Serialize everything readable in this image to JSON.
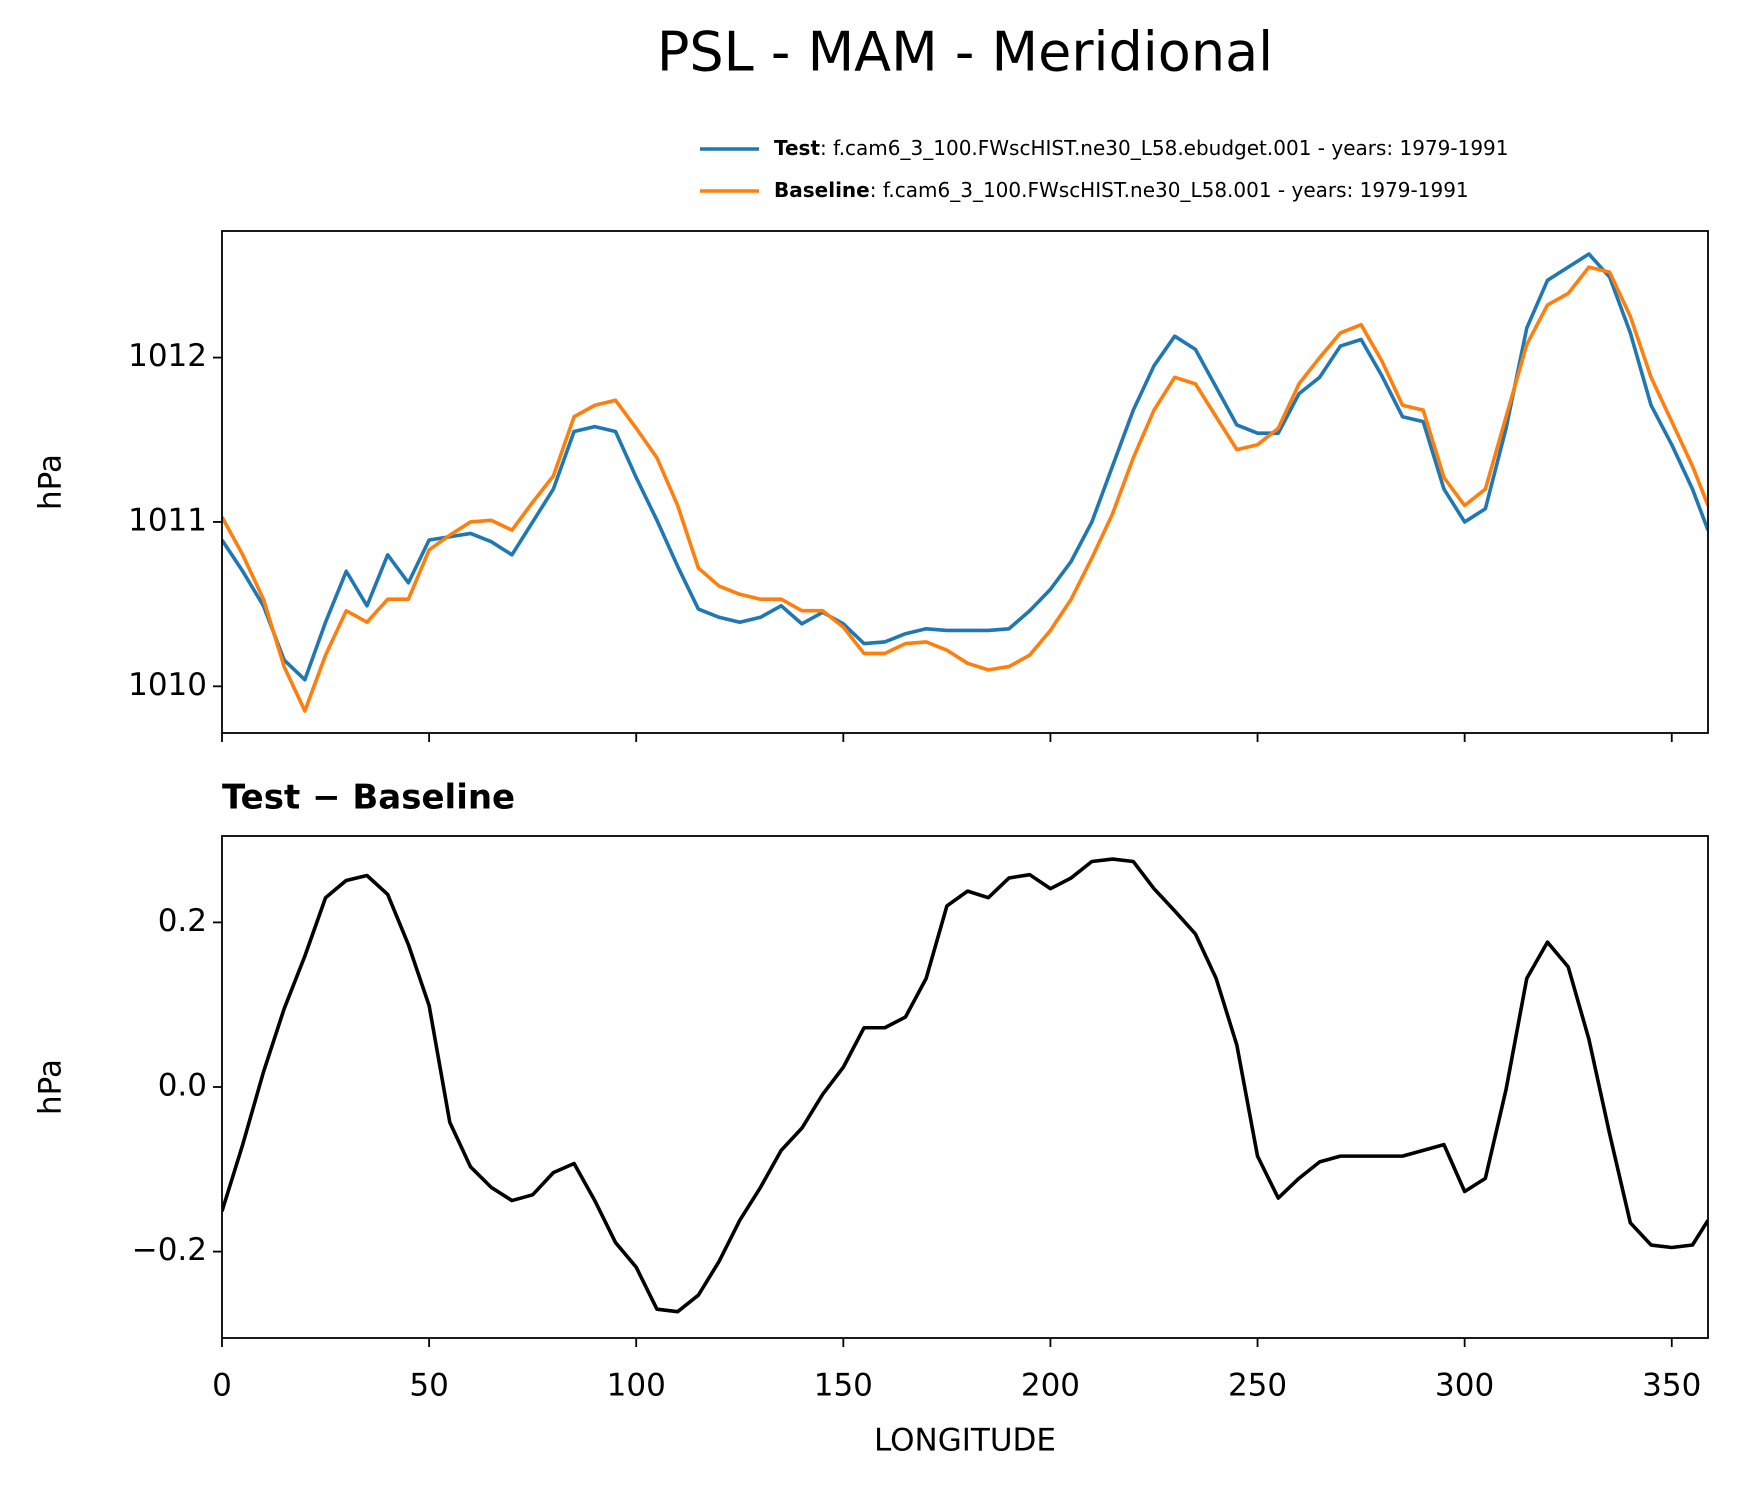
{
  "title": "PSL - MAM - Meridional",
  "chart_data": [
    {
      "type": "line",
      "ylabel": "hPa",
      "legend": "upper right",
      "x": [
        0,
        5,
        10,
        15,
        20,
        25,
        30,
        35,
        40,
        45,
        50,
        55,
        60,
        65,
        70,
        75,
        80,
        85,
        90,
        95,
        100,
        105,
        110,
        115,
        120,
        125,
        130,
        135,
        140,
        145,
        150,
        155,
        160,
        165,
        170,
        175,
        180,
        185,
        190,
        195,
        200,
        205,
        210,
        215,
        220,
        225,
        230,
        235,
        240,
        245,
        250,
        255,
        260,
        265,
        270,
        275,
        280,
        285,
        290,
        295,
        300,
        305,
        310,
        315,
        320,
        325,
        330,
        335,
        340,
        345,
        350,
        355,
        358.75
      ],
      "xlim": [
        0,
        358.75
      ],
      "xticks": [
        0,
        50,
        100,
        150,
        200,
        250,
        300,
        350
      ],
      "ylim": [
        1009.716,
        1012.77
      ],
      "yticks": [
        1010,
        1011,
        1012
      ],
      "series": [
        {
          "name": "Test",
          "description": ": f.cam6_3_100.FWscHIST.ne30_L58.ebudget.001 - years: 1979-1991",
          "color": "#1f77b4",
          "values": [
            1010.89,
            1010.7,
            1010.49,
            1010.16,
            1010.04,
            1010.39,
            1010.7,
            1010.49,
            1010.8,
            1010.63,
            1010.89,
            1010.91,
            1010.93,
            1010.88,
            1010.8,
            1011.0,
            1011.2,
            1011.55,
            1011.58,
            1011.55,
            1011.27,
            1011.01,
            1010.73,
            1010.47,
            1010.42,
            1010.39,
            1010.42,
            1010.49,
            1010.38,
            1010.45,
            1010.38,
            1010.26,
            1010.27,
            1010.32,
            1010.35,
            1010.34,
            1010.34,
            1010.34,
            1010.35,
            1010.46,
            1010.59,
            1010.76,
            1011.0,
            1011.34,
            1011.68,
            1011.95,
            1012.13,
            1012.05,
            1011.82,
            1011.59,
            1011.54,
            1011.54,
            1011.78,
            1011.88,
            1012.07,
            1012.11,
            1011.89,
            1011.64,
            1011.61,
            1011.2,
            1011.0,
            1011.08,
            1011.57,
            1012.18,
            1012.47,
            1012.55,
            1012.63,
            1012.49,
            1012.15,
            1011.71,
            1011.47,
            1011.2,
            1010.95
          ]
        },
        {
          "name": "Baseline",
          "description": ": f.cam6_3_100.FWscHIST.ne30_L58.001 - years: 1979-1991",
          "color": "#ff7f0e",
          "values": [
            1011.03,
            1010.8,
            1010.53,
            1010.12,
            1009.85,
            1010.19,
            1010.46,
            1010.39,
            1010.53,
            1010.53,
            1010.83,
            1010.92,
            1011.0,
            1011.01,
            1010.95,
            1011.12,
            1011.28,
            1011.64,
            1011.71,
            1011.74,
            1011.57,
            1011.39,
            1011.1,
            1010.72,
            1010.61,
            1010.56,
            1010.53,
            1010.53,
            1010.46,
            1010.46,
            1010.36,
            1010.2,
            1010.2,
            1010.26,
            1010.27,
            1010.22,
            1010.14,
            1010.1,
            1010.12,
            1010.19,
            1010.34,
            1010.53,
            1010.78,
            1011.05,
            1011.39,
            1011.68,
            1011.88,
            1011.84,
            1011.64,
            1011.44,
            1011.47,
            1011.57,
            1011.84,
            1012.0,
            1012.15,
            1012.2,
            1011.98,
            1011.71,
            1011.68,
            1011.27,
            1011.1,
            1011.2,
            1011.64,
            1012.08,
            1012.32,
            1012.39,
            1012.55,
            1012.52,
            1012.25,
            1011.88,
            1011.61,
            1011.34,
            1011.1
          ]
        }
      ]
    },
    {
      "type": "line",
      "title": "Test − Baseline",
      "xlabel": "LONGITUDE",
      "ylabel": "hPa",
      "x": [
        0,
        5,
        10,
        15,
        20,
        25,
        30,
        35,
        40,
        45,
        50,
        55,
        60,
        65,
        70,
        75,
        80,
        85,
        90,
        95,
        100,
        105,
        110,
        115,
        120,
        125,
        130,
        135,
        140,
        145,
        150,
        155,
        160,
        165,
        170,
        175,
        180,
        185,
        190,
        195,
        200,
        205,
        210,
        215,
        220,
        225,
        230,
        235,
        240,
        245,
        250,
        255,
        260,
        265,
        270,
        275,
        280,
        285,
        290,
        295,
        300,
        305,
        310,
        315,
        320,
        325,
        330,
        335,
        340,
        345,
        350,
        355,
        358.75
      ],
      "xlim": [
        0,
        358.75
      ],
      "xticks": [
        0,
        50,
        100,
        150,
        200,
        250,
        300,
        350
      ],
      "ylim": [
        -0.305,
        0.305
      ],
      "yticks": [
        {
          "value": -0.2,
          "label": "−0.2"
        },
        {
          "value": 0,
          "label": "0.0"
        },
        {
          "value": 0.2,
          "label": "0.2"
        }
      ],
      "series": [
        {
          "color": "#000000",
          "values": [
            -0.151,
            -0.07,
            0.018,
            0.095,
            0.159,
            0.23,
            0.251,
            0.257,
            0.234,
            0.173,
            0.099,
            -0.043,
            -0.097,
            -0.122,
            -0.138,
            -0.131,
            -0.104,
            -0.093,
            -0.138,
            -0.189,
            -0.219,
            -0.27,
            -0.273,
            -0.253,
            -0.212,
            -0.162,
            -0.122,
            -0.077,
            -0.05,
            -0.009,
            0.024,
            0.072,
            0.072,
            0.085,
            0.132,
            0.22,
            0.238,
            0.23,
            0.254,
            0.258,
            0.241,
            0.254,
            0.274,
            0.277,
            0.274,
            0.241,
            0.214,
            0.186,
            0.132,
            0.051,
            -0.084,
            -0.135,
            -0.111,
            -0.091,
            -0.084,
            -0.084,
            -0.084,
            -0.084,
            -0.077,
            -0.07,
            -0.127,
            -0.111,
            -0.003,
            0.132,
            0.176,
            0.146,
            0.058,
            -0.057,
            -0.165,
            -0.192,
            -0.195,
            -0.192,
            -0.162
          ]
        }
      ]
    }
  ]
}
